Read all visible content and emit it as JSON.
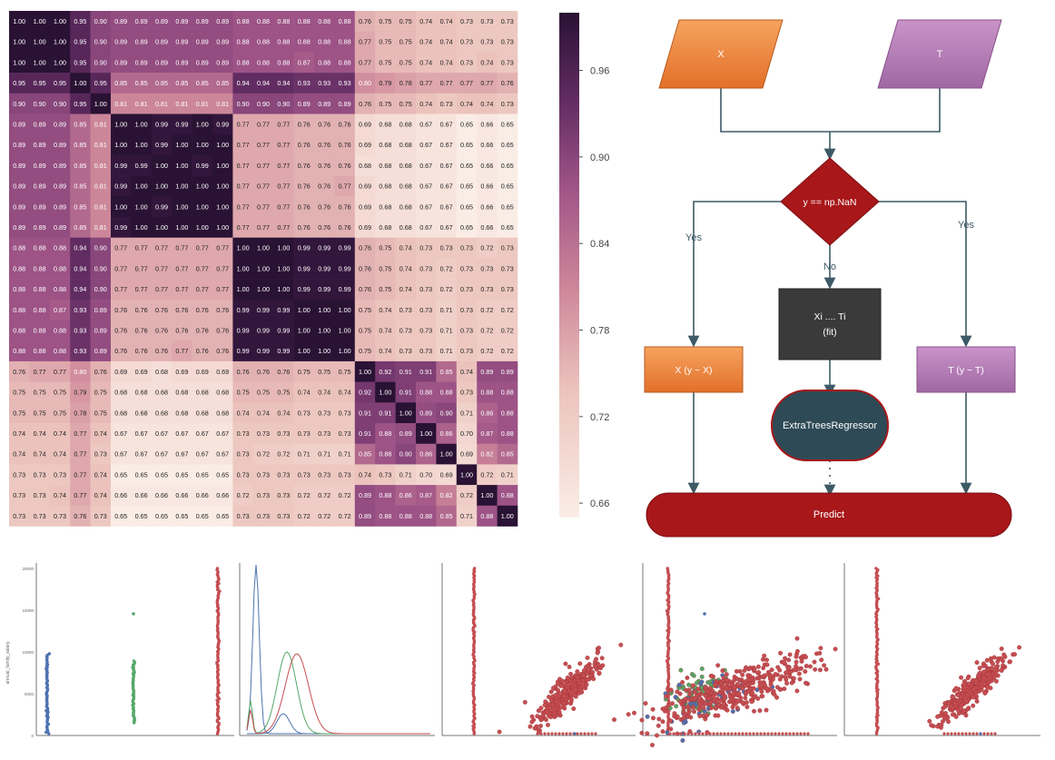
{
  "heatmap": {
    "matrix": [
      [
        1.0,
        1.0,
        1.0,
        0.95,
        0.9,
        0.89,
        0.89,
        0.89,
        0.89,
        0.89,
        0.89,
        0.88,
        0.88,
        0.88,
        0.88,
        0.88,
        0.88,
        0.76,
        0.75,
        0.75,
        0.74,
        0.74,
        0.73,
        0.73,
        0.73
      ],
      [
        1.0,
        1.0,
        1.0,
        0.95,
        0.9,
        0.89,
        0.89,
        0.89,
        0.89,
        0.89,
        0.89,
        0.88,
        0.88,
        0.88,
        0.88,
        0.88,
        0.88,
        0.77,
        0.75,
        0.75,
        0.74,
        0.74,
        0.73,
        0.73,
        0.73
      ],
      [
        1.0,
        1.0,
        1.0,
        0.95,
        0.9,
        0.89,
        0.89,
        0.89,
        0.89,
        0.89,
        0.89,
        0.88,
        0.88,
        0.88,
        0.87,
        0.88,
        0.88,
        0.77,
        0.75,
        0.75,
        0.74,
        0.74,
        0.73,
        0.74,
        0.73
      ],
      [
        0.95,
        0.95,
        0.95,
        1.0,
        0.95,
        0.85,
        0.85,
        0.85,
        0.85,
        0.85,
        0.85,
        0.94,
        0.94,
        0.94,
        0.93,
        0.93,
        0.93,
        0.8,
        0.79,
        0.78,
        0.77,
        0.77,
        0.77,
        0.77,
        0.76
      ],
      [
        0.9,
        0.9,
        0.9,
        0.95,
        1.0,
        0.81,
        0.81,
        0.81,
        0.81,
        0.81,
        0.81,
        0.9,
        0.9,
        0.9,
        0.89,
        0.89,
        0.89,
        0.76,
        0.75,
        0.75,
        0.74,
        0.73,
        0.74,
        0.74,
        0.73
      ],
      [
        0.89,
        0.89,
        0.89,
        0.85,
        0.81,
        1.0,
        1.0,
        0.99,
        0.99,
        1.0,
        0.99,
        0.77,
        0.77,
        0.77,
        0.76,
        0.76,
        0.76,
        0.69,
        0.68,
        0.68,
        0.67,
        0.67,
        0.65,
        0.66,
        0.65
      ],
      [
        0.89,
        0.89,
        0.89,
        0.85,
        0.81,
        1.0,
        1.0,
        0.99,
        1.0,
        1.0,
        1.0,
        0.77,
        0.77,
        0.77,
        0.76,
        0.76,
        0.76,
        0.69,
        0.68,
        0.68,
        0.67,
        0.67,
        0.65,
        0.66,
        0.65
      ],
      [
        0.89,
        0.89,
        0.89,
        0.85,
        0.81,
        0.99,
        0.99,
        1.0,
        1.0,
        0.99,
        1.0,
        0.77,
        0.77,
        0.77,
        0.76,
        0.76,
        0.76,
        0.68,
        0.68,
        0.68,
        0.67,
        0.67,
        0.65,
        0.66,
        0.65
      ],
      [
        0.89,
        0.89,
        0.89,
        0.85,
        0.81,
        0.99,
        1.0,
        1.0,
        1.0,
        1.0,
        1.0,
        0.77,
        0.77,
        0.77,
        0.76,
        0.76,
        0.77,
        0.69,
        0.68,
        0.68,
        0.67,
        0.67,
        0.65,
        0.66,
        0.65
      ],
      [
        0.89,
        0.89,
        0.89,
        0.85,
        0.81,
        1.0,
        1.0,
        0.99,
        1.0,
        1.0,
        1.0,
        0.77,
        0.77,
        0.77,
        0.76,
        0.76,
        0.76,
        0.69,
        0.68,
        0.68,
        0.67,
        0.67,
        0.65,
        0.66,
        0.65
      ],
      [
        0.89,
        0.89,
        0.89,
        0.85,
        0.81,
        0.99,
        1.0,
        1.0,
        1.0,
        1.0,
        1.0,
        0.77,
        0.77,
        0.77,
        0.76,
        0.76,
        0.76,
        0.69,
        0.68,
        0.68,
        0.67,
        0.67,
        0.65,
        0.66,
        0.65
      ],
      [
        0.88,
        0.88,
        0.88,
        0.94,
        0.9,
        0.77,
        0.77,
        0.77,
        0.77,
        0.77,
        0.77,
        1.0,
        1.0,
        1.0,
        0.99,
        0.99,
        0.99,
        0.76,
        0.75,
        0.74,
        0.73,
        0.73,
        0.73,
        0.72,
        0.73
      ],
      [
        0.88,
        0.88,
        0.88,
        0.94,
        0.9,
        0.77,
        0.77,
        0.77,
        0.77,
        0.77,
        0.77,
        1.0,
        1.0,
        1.0,
        0.99,
        0.99,
        0.99,
        0.76,
        0.75,
        0.74,
        0.73,
        0.72,
        0.73,
        0.73,
        0.73
      ],
      [
        0.88,
        0.88,
        0.88,
        0.94,
        0.9,
        0.77,
        0.77,
        0.77,
        0.77,
        0.77,
        0.77,
        1.0,
        1.0,
        1.0,
        0.99,
        0.99,
        0.99,
        0.76,
        0.75,
        0.74,
        0.73,
        0.72,
        0.73,
        0.73,
        0.73
      ],
      [
        0.88,
        0.88,
        0.87,
        0.93,
        0.89,
        0.76,
        0.76,
        0.76,
        0.76,
        0.76,
        0.76,
        0.99,
        0.99,
        0.99,
        1.0,
        1.0,
        1.0,
        0.75,
        0.74,
        0.73,
        0.73,
        0.71,
        0.73,
        0.72,
        0.72
      ],
      [
        0.88,
        0.88,
        0.88,
        0.93,
        0.89,
        0.76,
        0.76,
        0.76,
        0.76,
        0.76,
        0.76,
        0.99,
        0.99,
        0.99,
        1.0,
        1.0,
        1.0,
        0.75,
        0.74,
        0.73,
        0.73,
        0.71,
        0.73,
        0.72,
        0.72
      ],
      [
        0.88,
        0.88,
        0.88,
        0.93,
        0.89,
        0.76,
        0.76,
        0.76,
        0.77,
        0.76,
        0.76,
        0.99,
        0.99,
        0.99,
        1.0,
        1.0,
        1.0,
        0.75,
        0.74,
        0.73,
        0.73,
        0.71,
        0.73,
        0.72,
        0.72
      ],
      [
        0.76,
        0.77,
        0.77,
        0.8,
        0.76,
        0.69,
        0.69,
        0.68,
        0.69,
        0.69,
        0.69,
        0.76,
        0.76,
        0.76,
        0.75,
        0.75,
        0.75,
        1.0,
        0.92,
        0.91,
        0.91,
        0.85,
        0.74,
        0.89,
        0.89
      ],
      [
        0.75,
        0.75,
        0.75,
        0.79,
        0.75,
        0.68,
        0.68,
        0.68,
        0.68,
        0.68,
        0.68,
        0.75,
        0.75,
        0.75,
        0.74,
        0.74,
        0.74,
        0.92,
        1.0,
        0.91,
        0.88,
        0.88,
        0.73,
        0.88,
        0.88
      ],
      [
        0.75,
        0.75,
        0.75,
        0.78,
        0.75,
        0.68,
        0.68,
        0.68,
        0.68,
        0.68,
        0.68,
        0.74,
        0.74,
        0.74,
        0.73,
        0.73,
        0.73,
        0.91,
        0.91,
        1.0,
        0.89,
        0.9,
        0.71,
        0.86,
        0.88
      ],
      [
        0.74,
        0.74,
        0.74,
        0.77,
        0.74,
        0.67,
        0.67,
        0.67,
        0.67,
        0.67,
        0.67,
        0.73,
        0.73,
        0.73,
        0.73,
        0.73,
        0.73,
        0.91,
        0.88,
        0.89,
        1.0,
        0.86,
        0.7,
        0.87,
        0.88
      ],
      [
        0.74,
        0.74,
        0.74,
        0.77,
        0.73,
        0.67,
        0.67,
        0.67,
        0.67,
        0.67,
        0.67,
        0.73,
        0.72,
        0.72,
        0.71,
        0.71,
        0.71,
        0.85,
        0.88,
        0.9,
        0.86,
        1.0,
        0.69,
        0.82,
        0.85
      ],
      [
        0.73,
        0.73,
        0.73,
        0.77,
        0.74,
        0.65,
        0.65,
        0.65,
        0.65,
        0.65,
        0.65,
        0.73,
        0.73,
        0.73,
        0.73,
        0.73,
        0.73,
        0.74,
        0.73,
        0.71,
        0.7,
        0.69,
        1.0,
        0.72,
        0.71
      ],
      [
        0.73,
        0.73,
        0.74,
        0.77,
        0.74,
        0.66,
        0.66,
        0.66,
        0.66,
        0.66,
        0.66,
        0.72,
        0.73,
        0.73,
        0.72,
        0.72,
        0.72,
        0.89,
        0.88,
        0.86,
        0.87,
        0.82,
        0.72,
        1.0,
        0.88
      ],
      [
        0.73,
        0.73,
        0.73,
        0.76,
        0.73,
        0.65,
        0.65,
        0.65,
        0.65,
        0.65,
        0.65,
        0.73,
        0.73,
        0.73,
        0.72,
        0.72,
        0.72,
        0.89,
        0.88,
        0.88,
        0.88,
        0.85,
        0.71,
        0.88,
        1.0
      ]
    ],
    "colorbar": {
      "ticks": [
        "0.96",
        "0.90",
        "0.84",
        "0.78",
        "0.72",
        "0.66"
      ],
      "range": [
        0.65,
        1.0
      ]
    }
  },
  "flowchart": {
    "node_x": "X",
    "node_t": "T",
    "decision": "y == np.NaN",
    "edge_yes_left": "Yes",
    "edge_no": "No",
    "edge_yes_right": "Yes",
    "fit_box_line1": "Xi .... Ti",
    "fit_box_line2": "(fit)",
    "left_box": "X (y ~ X)",
    "right_box": "T (y ~ T)",
    "regressor": "ExtraTreesRegressor",
    "predict": "Predict",
    "colors": {
      "orange": "#f08a3e",
      "purple": "#b57bb8",
      "red": "#a8171a",
      "dark_gray": "#3a3a3a",
      "slate": "#2e4a56",
      "connector": "#3d5a66"
    }
  },
  "bottom_plots": {
    "ylabel": "annual_family_salary",
    "yticks": [
      "20000",
      "15000",
      "10000",
      "5000",
      "0"
    ],
    "series_colors": {
      "blue": "#4c72b0",
      "green": "#55a868",
      "red": "#c44e52"
    }
  }
}
